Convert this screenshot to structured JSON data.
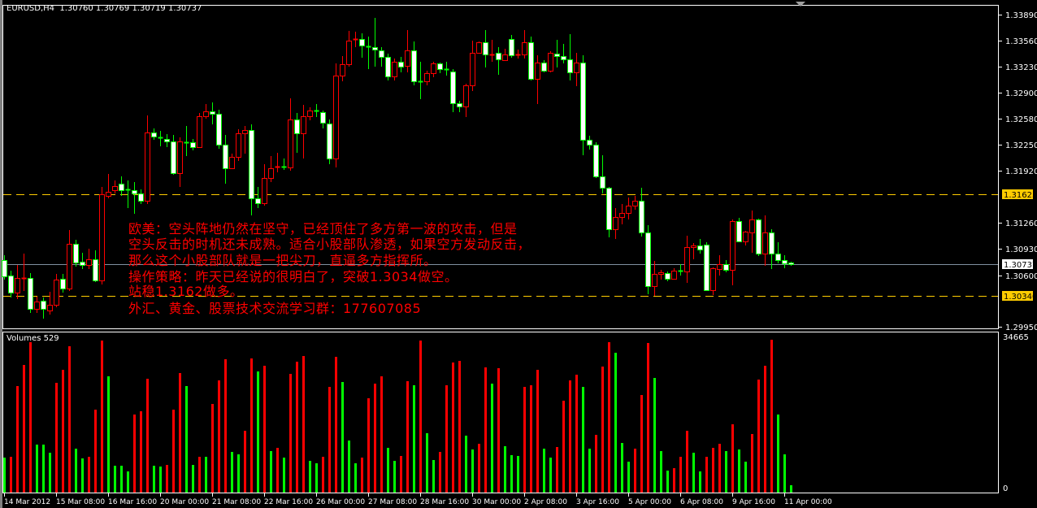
{
  "header": {
    "symbol_timeframe": "EURUSD,H4",
    "ohlc": "1.30760 1.30769 1.30719 1.30737"
  },
  "volume_panel": {
    "label": "Volumes 529",
    "scale_max": "34665",
    "scale_min": "0"
  },
  "colors": {
    "background": "#000000",
    "bull": "#ff0000",
    "bear_outline": "#00ff00",
    "bear_fill": "#ffffff",
    "level_line": "#ffcc00",
    "current_price_line": "#8090a0",
    "volume_up": "#ff0000",
    "volume_down": "#00ff00",
    "annotation": "#ff0000"
  },
  "annotation": {
    "lines": [
      "欧美：空头阵地仍然在坚守，已经顶住了多方第一波的攻击，但是",
      "空头反击的时机还未成熟。适合小股部队渗透，如果空方发动反击，",
      "那么这个小股部队就是一把尖刀，直逼多方指挥所。",
      "操作策略：昨天已经说的很明白了，突破1.3034做空。",
      "站稳1.3162做多。",
      "外汇、黄金、股票技术交流学习群：177607085"
    ]
  },
  "chart_data": {
    "type": "candlestick",
    "symbol": "EURUSD",
    "timeframe": "H4",
    "price_range": [
      1.2995,
      1.3389
    ],
    "price_ticks": [
      "1.33890",
      "1.33560",
      "1.33230",
      "1.32900",
      "1.32580",
      "1.32250",
      "1.31920",
      "1.31260",
      "1.30930",
      "1.30600",
      "1.29950"
    ],
    "levels": [
      {
        "price": 1.31625,
        "label": "1.31625"
      },
      {
        "price": 1.3034,
        "label": "1.30340"
      }
    ],
    "current_price": {
      "price": 1.30737,
      "label": "1.30737"
    },
    "date_ticks": [
      "14 Mar 2012",
      "15 Mar 08:00",
      "16 Mar 16:00",
      "20 Mar 00:00",
      "21 Mar 08:00",
      "22 Mar 16:00",
      "26 Mar 00:00",
      "27 Mar 08:00",
      "28 Mar 16:00",
      "30 Mar 00:00",
      "2 Apr 08:00",
      "3 Apr 16:00",
      "5 Apr 00:00",
      "6 Apr 08:00",
      "9 Apr 16:00",
      "11 Apr 00:00"
    ],
    "candles_ohlc": [
      [
        1.3079,
        1.3085,
        1.3055,
        1.3059
      ],
      [
        1.306,
        1.3066,
        1.3032,
        1.3038
      ],
      [
        1.3038,
        1.3073,
        1.303,
        1.3057
      ],
      [
        1.3056,
        1.3087,
        1.304,
        1.3057
      ],
      [
        1.3057,
        1.3063,
        1.3012,
        1.3018
      ],
      [
        1.3018,
        1.3033,
        1.3012,
        1.3027
      ],
      [
        1.3028,
        1.3032,
        1.3005,
        1.3018
      ],
      [
        1.3016,
        1.3039,
        1.301,
        1.3023
      ],
      [
        1.3023,
        1.3062,
        1.302,
        1.3055
      ],
      [
        1.3056,
        1.3062,
        1.3038,
        1.3043
      ],
      [
        1.3043,
        1.3117,
        1.304,
        1.31
      ],
      [
        1.31,
        1.3105,
        1.3071,
        1.3076
      ],
      [
        1.3077,
        1.3088,
        1.3068,
        1.3073
      ],
      [
        1.3073,
        1.3094,
        1.3068,
        1.308
      ],
      [
        1.308,
        1.3091,
        1.3051,
        1.3053
      ],
      [
        1.3053,
        1.3172,
        1.3048,
        1.3162
      ],
      [
        1.316,
        1.3188,
        1.3157,
        1.3165
      ],
      [
        1.3167,
        1.318,
        1.3163,
        1.3173
      ],
      [
        1.3176,
        1.3185,
        1.316,
        1.3167
      ],
      [
        1.3168,
        1.318,
        1.3145,
        1.3167
      ],
      [
        1.3167,
        1.3178,
        1.3138,
        1.3163
      ],
      [
        1.3163,
        1.3168,
        1.315,
        1.3154
      ],
      [
        1.3154,
        1.3262,
        1.315,
        1.324
      ],
      [
        1.324,
        1.3245,
        1.3231,
        1.3235
      ],
      [
        1.3234,
        1.3242,
        1.3223,
        1.3233
      ],
      [
        1.3232,
        1.3238,
        1.3222,
        1.3229
      ],
      [
        1.3229,
        1.3237,
        1.3187,
        1.3189
      ],
      [
        1.3189,
        1.3234,
        1.3172,
        1.3229
      ],
      [
        1.3228,
        1.3248,
        1.321,
        1.3227
      ],
      [
        1.3228,
        1.3232,
        1.3218,
        1.3222
      ],
      [
        1.3222,
        1.3265,
        1.3222,
        1.3261
      ],
      [
        1.3261,
        1.3276,
        1.3258,
        1.3267
      ],
      [
        1.3267,
        1.3278,
        1.3251,
        1.3264
      ],
      [
        1.3264,
        1.3269,
        1.322,
        1.3225
      ],
      [
        1.3225,
        1.3237,
        1.3176,
        1.3195
      ],
      [
        1.3195,
        1.3214,
        1.3195,
        1.3209
      ],
      [
        1.3209,
        1.3244,
        1.3204,
        1.3239
      ],
      [
        1.3239,
        1.3248,
        1.3214,
        1.3243
      ],
      [
        1.3243,
        1.325,
        1.3136,
        1.3157
      ],
      [
        1.3157,
        1.3172,
        1.3145,
        1.3151
      ],
      [
        1.3151,
        1.32,
        1.3148,
        1.3183
      ],
      [
        1.3183,
        1.321,
        1.3178,
        1.3195
      ],
      [
        1.3196,
        1.3215,
        1.319,
        1.3197
      ],
      [
        1.3197,
        1.3207,
        1.3193,
        1.3196
      ],
      [
        1.3196,
        1.3283,
        1.3192,
        1.3257
      ],
      [
        1.3257,
        1.3265,
        1.3215,
        1.3239
      ],
      [
        1.3239,
        1.3275,
        1.3207,
        1.3261
      ],
      [
        1.3261,
        1.3272,
        1.3256,
        1.3268
      ],
      [
        1.3268,
        1.3276,
        1.326,
        1.3267
      ],
      [
        1.3266,
        1.3268,
        1.3245,
        1.3253
      ],
      [
        1.3252,
        1.3257,
        1.32,
        1.3207
      ],
      [
        1.3207,
        1.3327,
        1.3196,
        1.3312
      ],
      [
        1.3312,
        1.3337,
        1.3305,
        1.3326
      ],
      [
        1.3326,
        1.3368,
        1.3323,
        1.3356
      ],
      [
        1.3357,
        1.3367,
        1.3348,
        1.3358
      ],
      [
        1.3358,
        1.3365,
        1.3335,
        1.335
      ],
      [
        1.3349,
        1.3361,
        1.332,
        1.3348
      ],
      [
        1.3348,
        1.3385,
        1.3323,
        1.3345
      ],
      [
        1.3344,
        1.3348,
        1.3323,
        1.3336
      ],
      [
        1.3336,
        1.334,
        1.3306,
        1.3311
      ],
      [
        1.3311,
        1.3334,
        1.3306,
        1.3329
      ],
      [
        1.3329,
        1.3336,
        1.3316,
        1.3323
      ],
      [
        1.3324,
        1.337,
        1.3316,
        1.3344
      ],
      [
        1.3344,
        1.3355,
        1.33,
        1.3305
      ],
      [
        1.3305,
        1.333,
        1.3282,
        1.3304
      ],
      [
        1.3305,
        1.3318,
        1.33,
        1.3315
      ],
      [
        1.3315,
        1.3329,
        1.331,
        1.3327
      ],
      [
        1.3327,
        1.3328,
        1.3315,
        1.332
      ],
      [
        1.332,
        1.333,
        1.3312,
        1.3319
      ],
      [
        1.3317,
        1.332,
        1.3266,
        1.3277
      ],
      [
        1.3277,
        1.328,
        1.3266,
        1.3273
      ],
      [
        1.3273,
        1.3302,
        1.326,
        1.33
      ],
      [
        1.33,
        1.3356,
        1.3293,
        1.3341
      ],
      [
        1.3341,
        1.3355,
        1.3344,
        1.3354
      ],
      [
        1.3354,
        1.3369,
        1.3322,
        1.3339
      ],
      [
        1.3338,
        1.3357,
        1.3329,
        1.3339
      ],
      [
        1.3341,
        1.3348,
        1.3313,
        1.3333
      ],
      [
        1.3332,
        1.3346,
        1.3332,
        1.3339
      ],
      [
        1.3358,
        1.3363,
        1.3335,
        1.3338
      ],
      [
        1.3338,
        1.3345,
        1.3334,
        1.3339
      ],
      [
        1.3339,
        1.337,
        1.3334,
        1.3354
      ],
      [
        1.3354,
        1.3361,
        1.3306,
        1.3308
      ],
      [
        1.3308,
        1.3338,
        1.3276,
        1.3328
      ],
      [
        1.3328,
        1.3332,
        1.3316,
        1.3318
      ],
      [
        1.3318,
        1.3343,
        1.3316,
        1.3341
      ],
      [
        1.334,
        1.3357,
        1.3322,
        1.3337
      ],
      [
        1.3337,
        1.3352,
        1.3327,
        1.3333
      ],
      [
        1.3333,
        1.3364,
        1.3306,
        1.3316
      ],
      [
        1.3316,
        1.3341,
        1.3299,
        1.3328
      ],
      [
        1.3328,
        1.3338,
        1.3211,
        1.3231
      ],
      [
        1.3231,
        1.3236,
        1.3219,
        1.3225
      ],
      [
        1.3225,
        1.3228,
        1.3183,
        1.3185
      ],
      [
        1.3185,
        1.3212,
        1.3163,
        1.317
      ],
      [
        1.317,
        1.3172,
        1.3108,
        1.3118
      ],
      [
        1.3118,
        1.3145,
        1.3106,
        1.3134
      ],
      [
        1.3134,
        1.315,
        1.3124,
        1.3139
      ],
      [
        1.3139,
        1.3158,
        1.313,
        1.3148
      ],
      [
        1.3148,
        1.316,
        1.3143,
        1.3154
      ],
      [
        1.3154,
        1.317,
        1.3109,
        1.3114
      ],
      [
        1.3114,
        1.3123,
        1.3036,
        1.3046
      ],
      [
        1.3046,
        1.3078,
        1.3034,
        1.3062
      ],
      [
        1.3062,
        1.3067,
        1.3055,
        1.3064
      ],
      [
        1.3063,
        1.3065,
        1.3052,
        1.3056
      ],
      [
        1.3056,
        1.3069,
        1.3056,
        1.3066
      ],
      [
        1.3066,
        1.3074,
        1.306,
        1.3065
      ],
      [
        1.3065,
        1.311,
        1.305,
        1.3096
      ],
      [
        1.3096,
        1.3101,
        1.308,
        1.3098
      ],
      [
        1.3098,
        1.3106,
        1.3087,
        1.3092
      ],
      [
        1.3099,
        1.3102,
        1.304,
        1.3041
      ],
      [
        1.3041,
        1.307,
        1.3035,
        1.3069
      ],
      [
        1.3068,
        1.3085,
        1.306,
        1.3074
      ],
      [
        1.3074,
        1.3079,
        1.3064,
        1.3067
      ],
      [
        1.3067,
        1.313,
        1.3047,
        1.3128
      ],
      [
        1.3128,
        1.3132,
        1.3102,
        1.3103
      ],
      [
        1.3103,
        1.3116,
        1.3098,
        1.3115
      ],
      [
        1.3114,
        1.3142,
        1.3088,
        1.313
      ],
      [
        1.313,
        1.3131,
        1.3084,
        1.3087
      ],
      [
        1.3087,
        1.3136,
        1.3072,
        1.3114
      ],
      [
        1.3114,
        1.3118,
        1.3068,
        1.3087
      ],
      [
        1.3087,
        1.3102,
        1.3075,
        1.3079
      ],
      [
        1.3079,
        1.3085,
        1.3069,
        1.3075
      ],
      [
        1.3076,
        1.30769,
        1.30719,
        1.30737
      ]
    ],
    "volume_range": [
      0,
      34665
    ],
    "volumes": [
      6880,
      7000,
      23050,
      27900,
      33060,
      9770,
      9770,
      7930,
      23790,
      26740,
      32090,
      8850,
      6640,
      7000,
      17700,
      33380,
      25260,
      4980,
      4980,
      3690,
      16600,
      17330,
      24710,
      4980,
      4790,
      5160,
      17700,
      26000,
      23050,
      5160,
      7000,
      7000,
      18990,
      24340,
      29140,
      8110,
      7560,
      12910,
      29320,
      26370,
      27660,
      8300,
      9040,
      6820,
      25820,
      28580,
      29870,
      6090,
      5530,
      7000,
      22870,
      29690,
      23970,
      10700,
      5530,
      6820,
      20280,
      23600,
      25260,
      9040,
      6090,
      7190,
      24160,
      23230,
      33380,
      12350,
      6270,
      8110,
      23230,
      28400,
      28770,
      11800,
      8670,
      9960,
      27290,
      23600,
      27110,
      9400,
      7380,
      7190,
      22870,
      23230,
      26740,
      8850,
      6820,
      9220,
      19730,
      24340,
      25630,
      22870,
      8850,
      11990,
      27480,
      33010,
      30610,
      10140,
      5900,
      8850,
      21020,
      32820,
      24890,
      8300,
      3870,
      4430,
      7000,
      12910,
      7930,
      3690,
      7000,
      9040,
      9960,
      8300,
      14380,
      8670,
      5900,
      12170,
      24530,
      27660,
      33560,
      16600,
      7560,
      529
    ]
  }
}
